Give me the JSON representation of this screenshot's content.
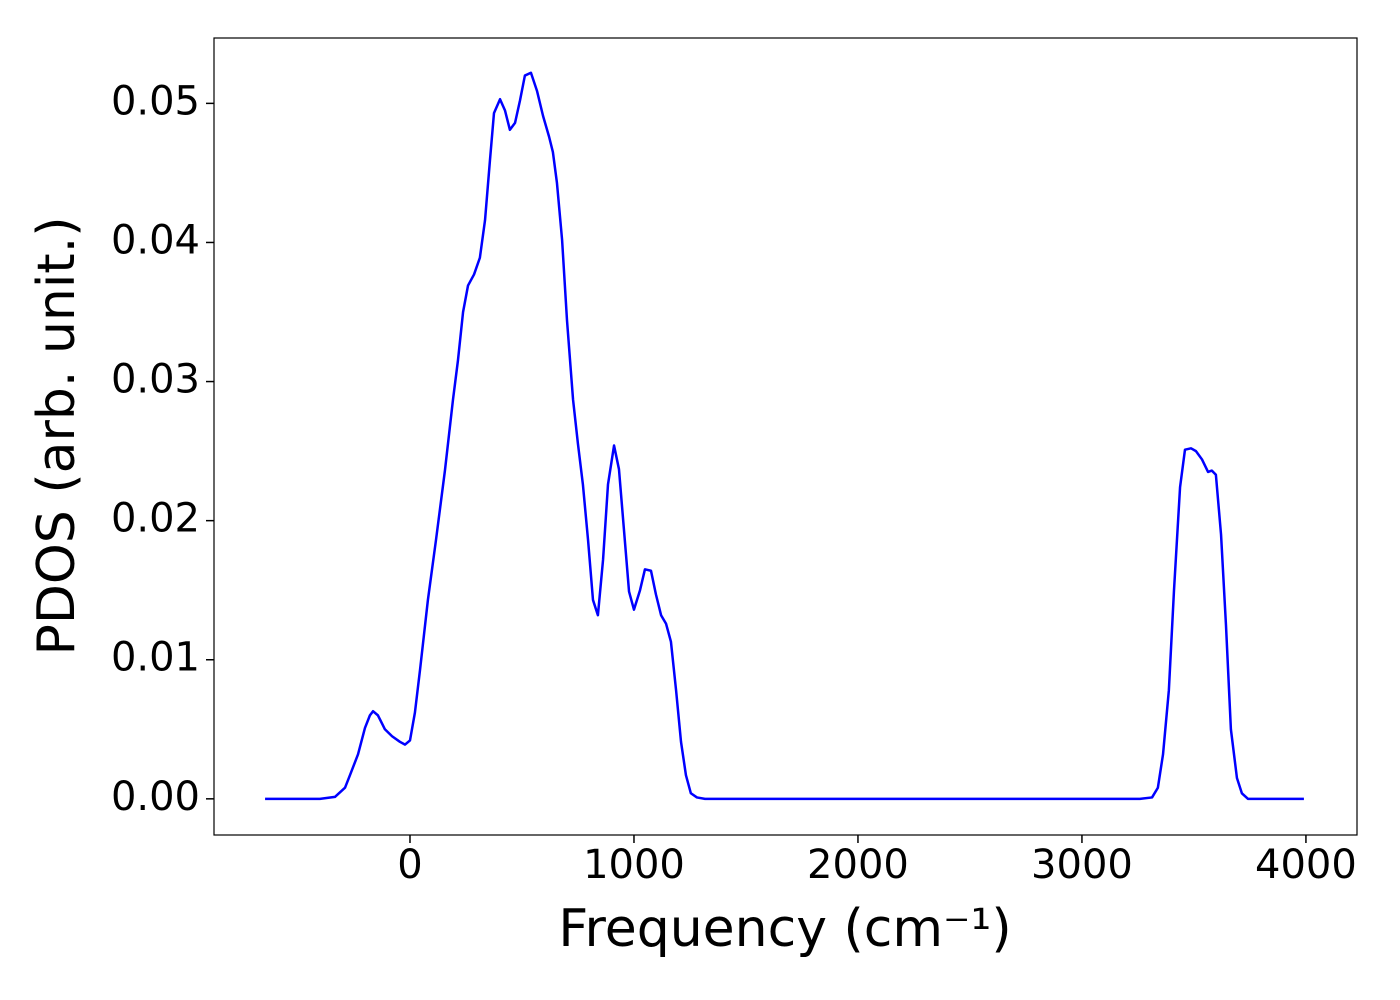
{
  "chart_data": {
    "type": "line",
    "xlabel": "Frequency (cm⁻¹)",
    "ylabel": "PDOS (arb. unit.)",
    "x": [
      -647,
      -402,
      -335,
      -290,
      -268,
      -232,
      -201,
      -179,
      -165,
      -143,
      -112,
      -80,
      -45,
      -22,
      0,
      22,
      45,
      80,
      116,
      156,
      192,
      214,
      237,
      259,
      286,
      312,
      335,
      357,
      375,
      402,
      424,
      446,
      469,
      491,
      513,
      540,
      567,
      594,
      621,
      638,
      656,
      679,
      701,
      728,
      750,
      772,
      795,
      817,
      839,
      862,
      884,
      911,
      933,
      955,
      978,
      1000,
      1027,
      1049,
      1076,
      1098,
      1121,
      1143,
      1165,
      1188,
      1210,
      1232,
      1254,
      1281,
      1317,
      3259,
      3313,
      3339,
      3362,
      3388,
      3411,
      3438,
      3460,
      3487,
      3509,
      3536,
      3563,
      3580,
      3598,
      3621,
      3643,
      3665,
      3692,
      3714,
      3741,
      3991
    ],
    "series": [
      {
        "name": "PDOS",
        "color": "#0000ff",
        "values": [
          0,
          0,
          0.00014,
          0.0008,
          0.0017,
          0.0032,
          0.0051,
          0.006,
          0.0063,
          0.006,
          0.005,
          0.0045,
          0.0041,
          0.0039,
          0.0042,
          0.0062,
          0.0093,
          0.0143,
          0.0186,
          0.0236,
          0.0287,
          0.0315,
          0.035,
          0.0369,
          0.0377,
          0.0389,
          0.0416,
          0.0459,
          0.0493,
          0.0503,
          0.0495,
          0.0481,
          0.0486,
          0.0502,
          0.052,
          0.0522,
          0.0509,
          0.0491,
          0.0476,
          0.0465,
          0.0443,
          0.0402,
          0.0344,
          0.0287,
          0.0255,
          0.0226,
          0.0186,
          0.0143,
          0.0132,
          0.0172,
          0.0226,
          0.0254,
          0.0237,
          0.0194,
          0.0149,
          0.0136,
          0.015,
          0.0165,
          0.0164,
          0.0147,
          0.0132,
          0.0126,
          0.0113,
          0.0078,
          0.0041,
          0.0017,
          0.0004,
          0.0001,
          0,
          0,
          0.0001,
          0.0008,
          0.0032,
          0.0078,
          0.015,
          0.0224,
          0.0251,
          0.0252,
          0.025,
          0.0244,
          0.0235,
          0.0236,
          0.0233,
          0.019,
          0.0125,
          0.005,
          0.0015,
          0.0004,
          0,
          0
        ]
      }
    ],
    "xlim": [
      -875,
      4228
    ],
    "ylim": [
      -0.0026,
      0.0547
    ],
    "xticks": [
      0,
      1000,
      2000,
      3000,
      4000
    ],
    "yticks": [
      {
        "value": 0,
        "label": "0.00"
      },
      0.01,
      0.02,
      0.03,
      0.04,
      0.05
    ]
  }
}
